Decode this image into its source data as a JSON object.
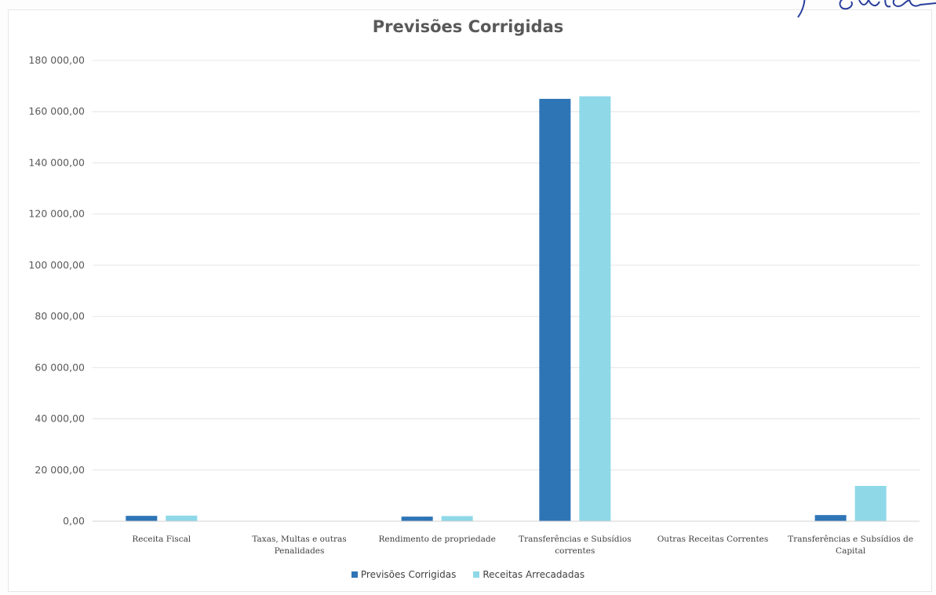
{
  "chart_data": {
    "type": "bar",
    "title": "Previsões Corrigidas",
    "categories": [
      [
        "Receita Fiscal"
      ],
      [
        "Taxas, Multas e outras",
        "Penalidades"
      ],
      [
        "Rendimento de propriedade"
      ],
      [
        "Transferências e Subsídios",
        "correntes"
      ],
      [
        "Outras Receitas Correntes"
      ],
      [
        "Transferências e Subsídios de",
        "Capital"
      ]
    ],
    "series": [
      {
        "name": "Previsões Corrigidas",
        "color": "#2e75b6",
        "values": [
          2100,
          0,
          1800,
          165000,
          0,
          2400
        ]
      },
      {
        "name": "Receitas Arrecadadas",
        "color": "#8ed8e8",
        "values": [
          2200,
          0,
          2000,
          166000,
          0,
          13800
        ]
      }
    ],
    "ylim": [
      0,
      180000
    ],
    "yticks": [
      "0,00",
      "20 000,00",
      "40 000,00",
      "60 000,00",
      "80 000,00",
      "100 000,00",
      "120 000,00",
      "140 000,00",
      "160 000,00",
      "180 000,00"
    ],
    "grid": true,
    "legend_position": "bottom"
  }
}
